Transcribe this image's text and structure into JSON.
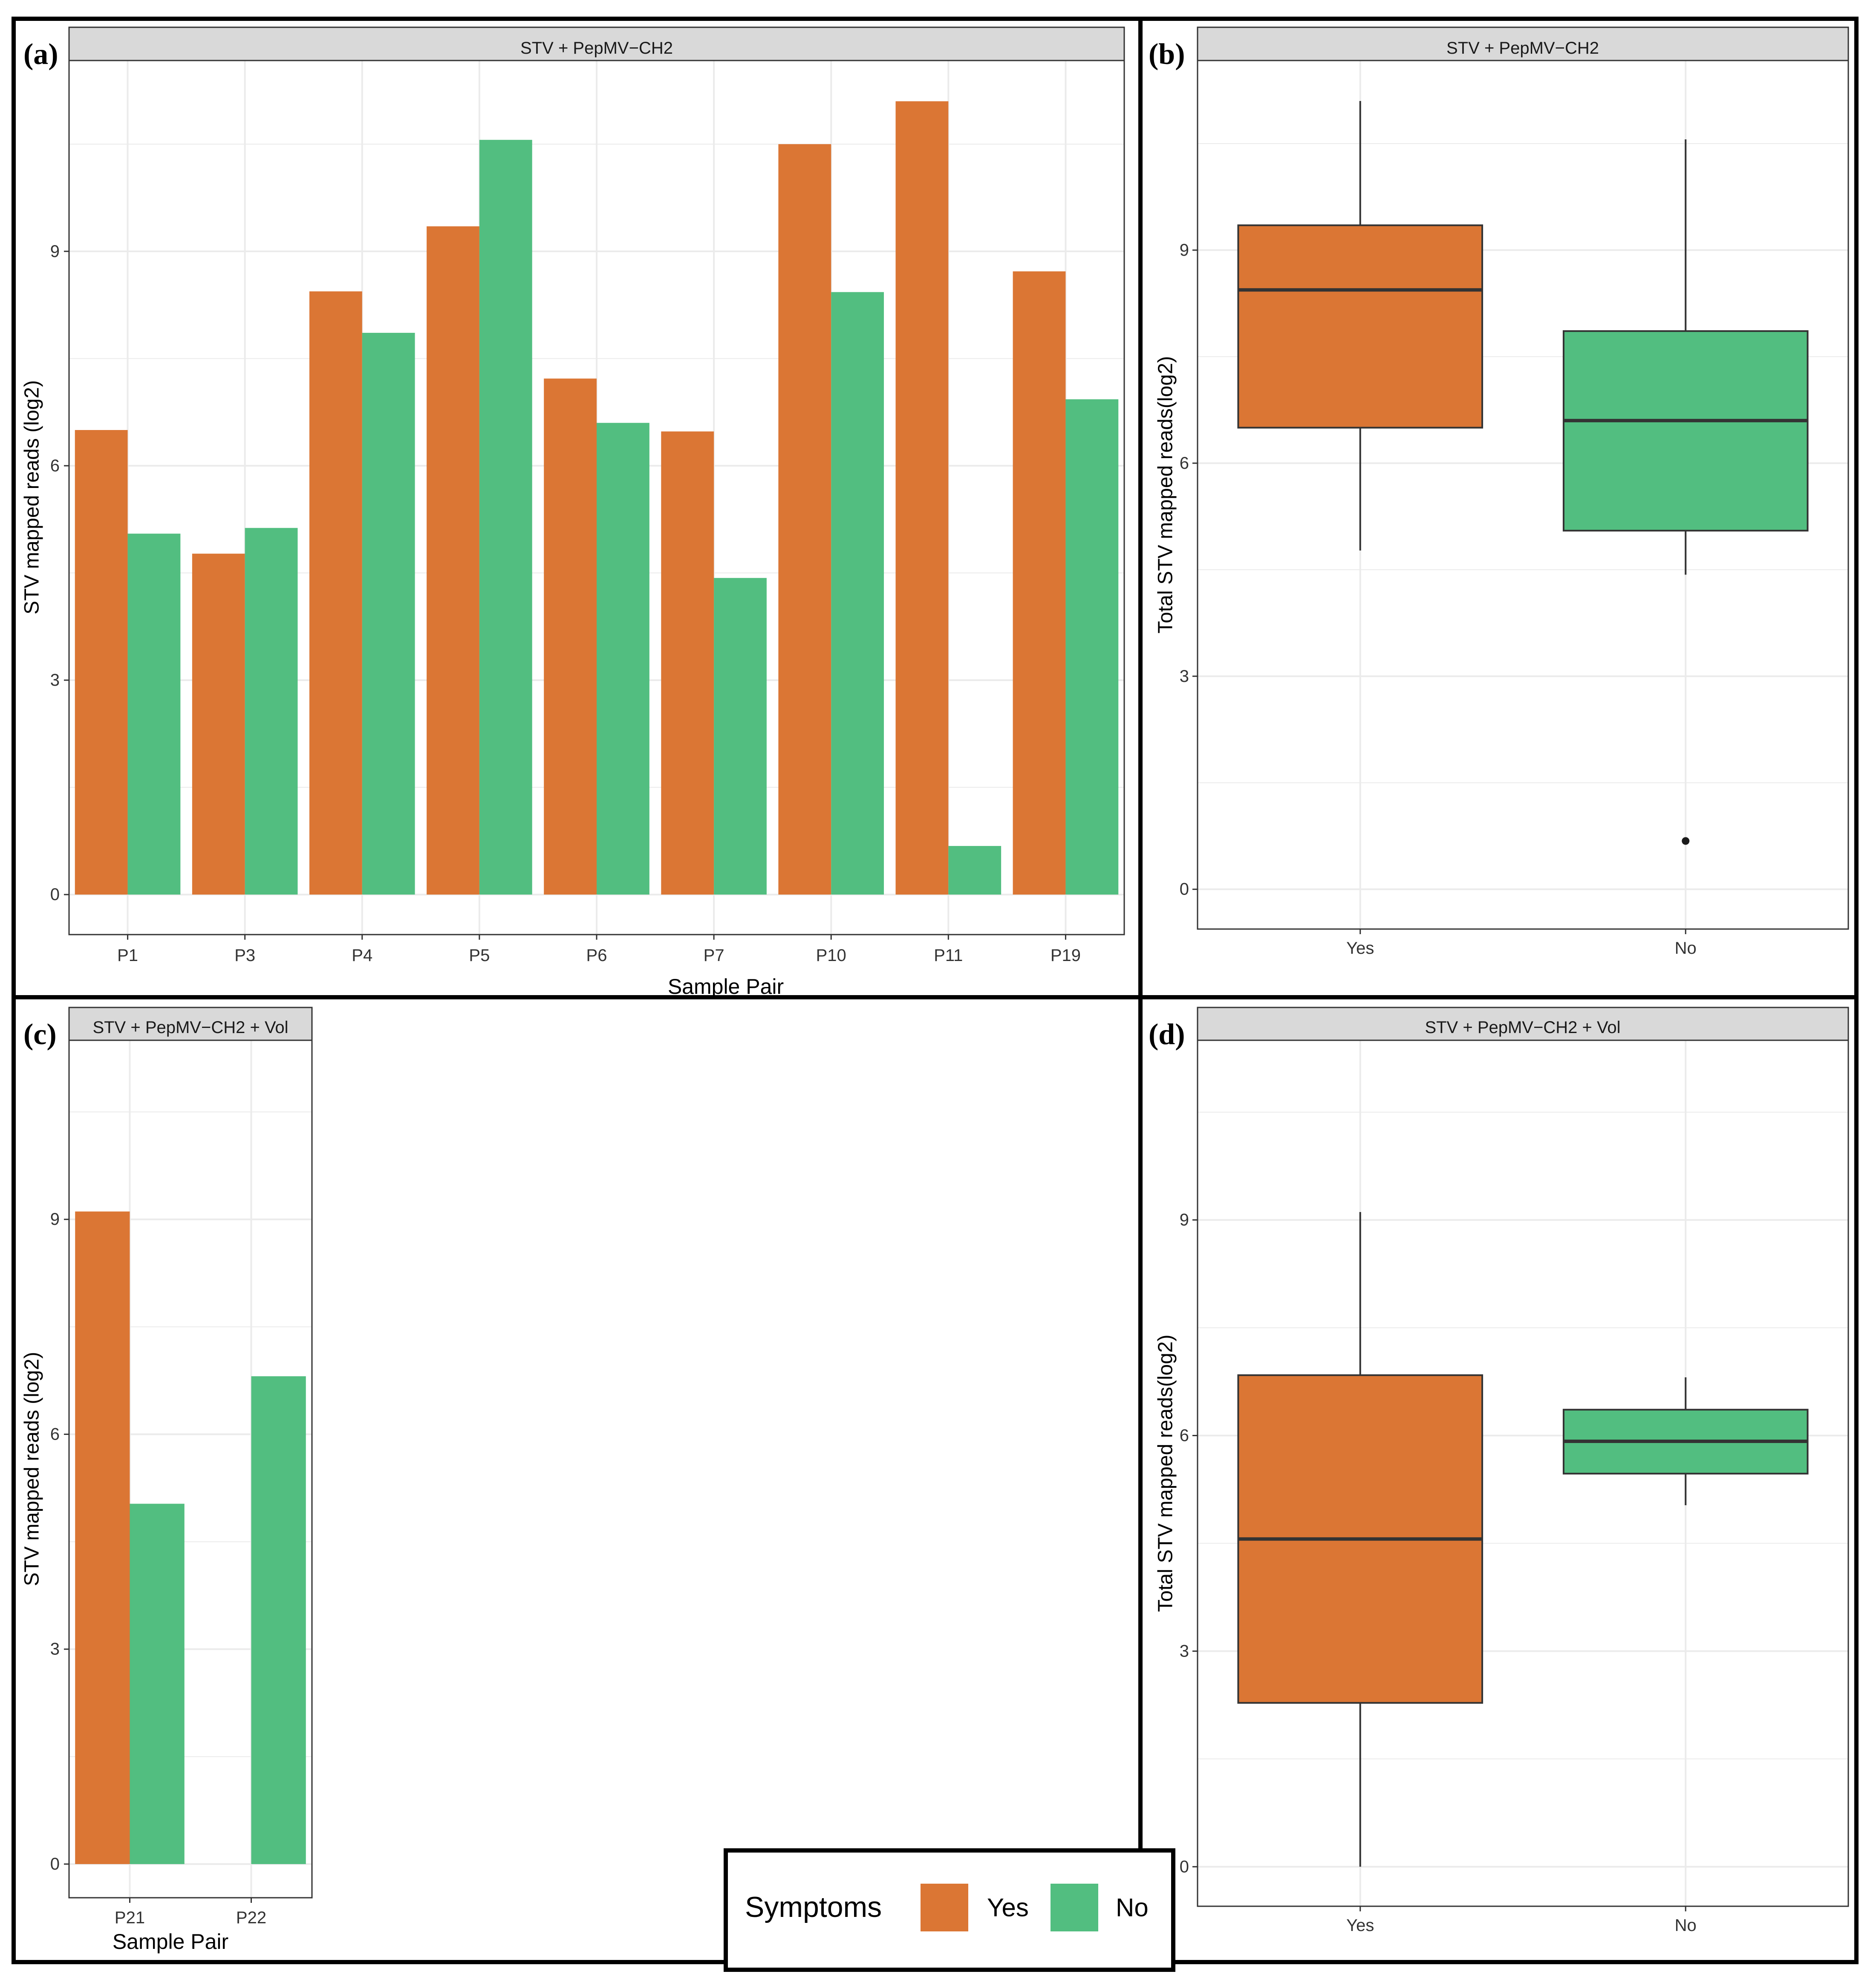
{
  "figure": {
    "colors": {
      "yes": "#DB7634",
      "no": "#52BE80",
      "strip": "#D9D9D9",
      "grid": "#EBEBEB",
      "text": "#333333",
      "border": "#000000"
    }
  },
  "legend": {
    "title": "Symptoms",
    "items": [
      {
        "label": "Yes",
        "color": "#DB7634"
      },
      {
        "label": "No",
        "color": "#52BE80"
      }
    ]
  },
  "chart_data": [
    {
      "panel": "a",
      "letter": "(a)",
      "type": "bar",
      "title": "STV + PepMV−CH2",
      "xlabel": "Sample Pair",
      "ylabel": "STV mapped reads (log2)",
      "categories": [
        "P1",
        "P3",
        "P4",
        "P5",
        "P6",
        "P7",
        "P10",
        "P11",
        "P19"
      ],
      "series": [
        {
          "name": "Yes",
          "values": [
            6.5,
            4.77,
            8.44,
            9.35,
            7.22,
            6.48,
            10.5,
            11.1,
            8.72
          ]
        },
        {
          "name": "No",
          "values": [
            5.05,
            5.13,
            7.86,
            10.56,
            6.6,
            4.43,
            8.43,
            0.68,
            6.93
          ]
        }
      ],
      "yticks": [
        0,
        3,
        6,
        9
      ],
      "ylim": [
        -0.56,
        11.67
      ]
    },
    {
      "panel": "b",
      "letter": "(b)",
      "type": "box",
      "title": "STV + PepMV−CH2",
      "ylabel": "Total STV mapped reads(log2)",
      "categories": [
        "Yes",
        "No"
      ],
      "boxes": [
        {
          "name": "Yes",
          "min": 4.77,
          "q1": 6.5,
          "median": 8.44,
          "q3": 9.35,
          "max": 11.1,
          "outliers": []
        },
        {
          "name": "No",
          "min": 4.43,
          "q1": 5.05,
          "median": 6.6,
          "q3": 7.86,
          "max": 10.56,
          "outliers": [
            0.68
          ]
        }
      ],
      "yticks": [
        0,
        3,
        6,
        9
      ],
      "ylim": [
        -0.56,
        11.67
      ]
    },
    {
      "panel": "c",
      "letter": "(c)",
      "type": "bar",
      "title": "STV + PepMV−CH2 + Vol",
      "xlabel": "Sample Pair",
      "ylabel": "STV mapped reads (log2)",
      "categories": [
        "P21",
        "P22"
      ],
      "series": [
        {
          "name": "Yes",
          "values": [
            9.11,
            0
          ]
        },
        {
          "name": "No",
          "values": [
            5.03,
            6.81
          ]
        }
      ],
      "yticks": [
        0,
        3,
        6,
        9
      ],
      "ylim": [
        -0.47,
        11.5
      ]
    },
    {
      "panel": "d",
      "letter": "(d)",
      "type": "box",
      "title": "STV + PepMV−CH2 + Vol",
      "ylabel": "Total STV mapped reads(log2)",
      "categories": [
        "Yes",
        "No"
      ],
      "boxes": [
        {
          "name": "Yes",
          "min": 0,
          "q1": 2.28,
          "median": 4.56,
          "q3": 6.84,
          "max": 9.11,
          "outliers": []
        },
        {
          "name": "No",
          "min": 5.03,
          "q1": 5.47,
          "median": 5.92,
          "q3": 6.36,
          "max": 6.81,
          "outliers": []
        }
      ],
      "yticks": [
        0,
        3,
        6,
        9
      ],
      "ylim": [
        -0.55,
        11.5
      ]
    }
  ]
}
